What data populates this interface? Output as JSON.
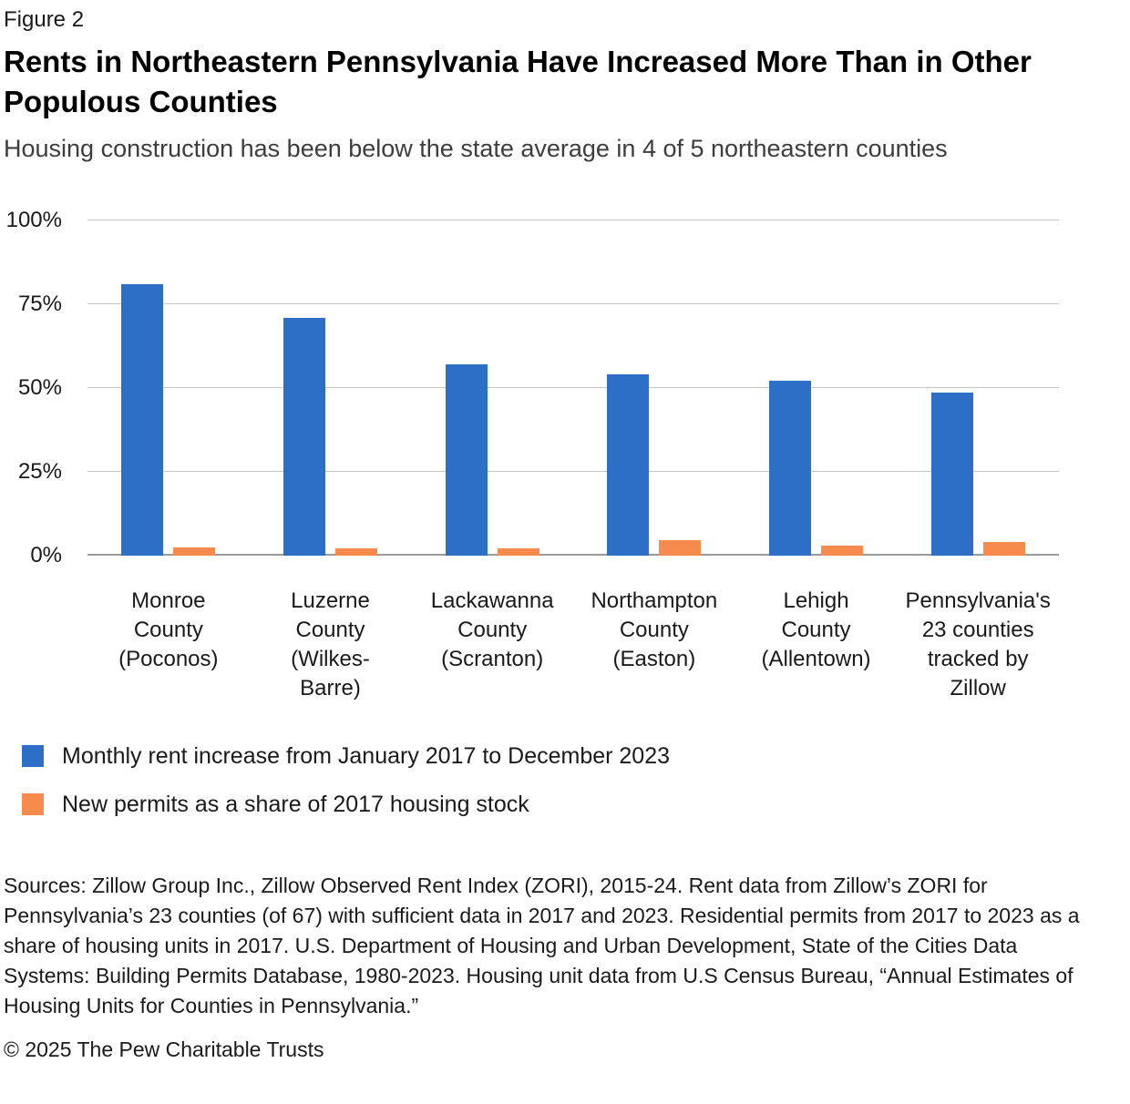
{
  "header": {
    "figure_label": "Figure 2",
    "title": "Rents in Northeastern Pennsylvania Have Increased More Than in Other Populous Counties",
    "subtitle": "Housing construction has been below the state average in 4 of 5 northeastern counties"
  },
  "chart_data": {
    "type": "bar",
    "categories": [
      "Monroe County (Poconos)",
      "Luzerne County (Wilkes-Barre)",
      "Lackawanna County (Scranton)",
      "Northampton County (Easton)",
      "Lehigh County (Allentown)",
      "Pennsylvania's 23 counties tracked by Zillow"
    ],
    "category_labels": [
      "Monroe\nCounty\n(Poconos)",
      "Luzerne\nCounty\n(Wilkes-\nBarre)",
      "Lackawanna\nCounty\n(Scranton)",
      "Northampton\nCounty\n(Easton)",
      "Lehigh\nCounty\n(Allentown)",
      "Pennsylvania's\n23 counties\ntracked by\nZillow"
    ],
    "series": [
      {
        "name": "Monthly rent increase from January 2017 to December 2023",
        "color": "#2d6fc6",
        "values": [
          81,
          71,
          57,
          54,
          52,
          48.5
        ]
      },
      {
        "name": "New permits as a share of 2017 housing stock",
        "color": "#f78b4d",
        "values": [
          2.5,
          2,
          2,
          4.5,
          3,
          4
        ]
      }
    ],
    "xlabel": "",
    "ylabel": "",
    "ylim": [
      0,
      100
    ],
    "y_ticks": [
      0,
      25,
      50,
      75,
      100
    ],
    "y_tick_suffix": "%",
    "grid": true,
    "legend_position": "bottom-left"
  },
  "sources": "Sources: Zillow Group Inc., Zillow Observed Rent Index (ZORI), 2015-24. Rent data from Zillow’s ZORI for Pennsylvania’s 23 counties (of 67) with sufficient data in 2017 and 2023. Residential permits from 2017 to 2023 as a share of housing units in 2017. U.S. Department of Housing and Urban Development, State of the Cities Data Systems: Building Permits Database, 1980-2023. Housing unit data from U.S Census Bureau, “Annual Estimates of Housing Units for Counties in Pennsylvania.”",
  "footer": "© 2025 The Pew Charitable Trusts"
}
